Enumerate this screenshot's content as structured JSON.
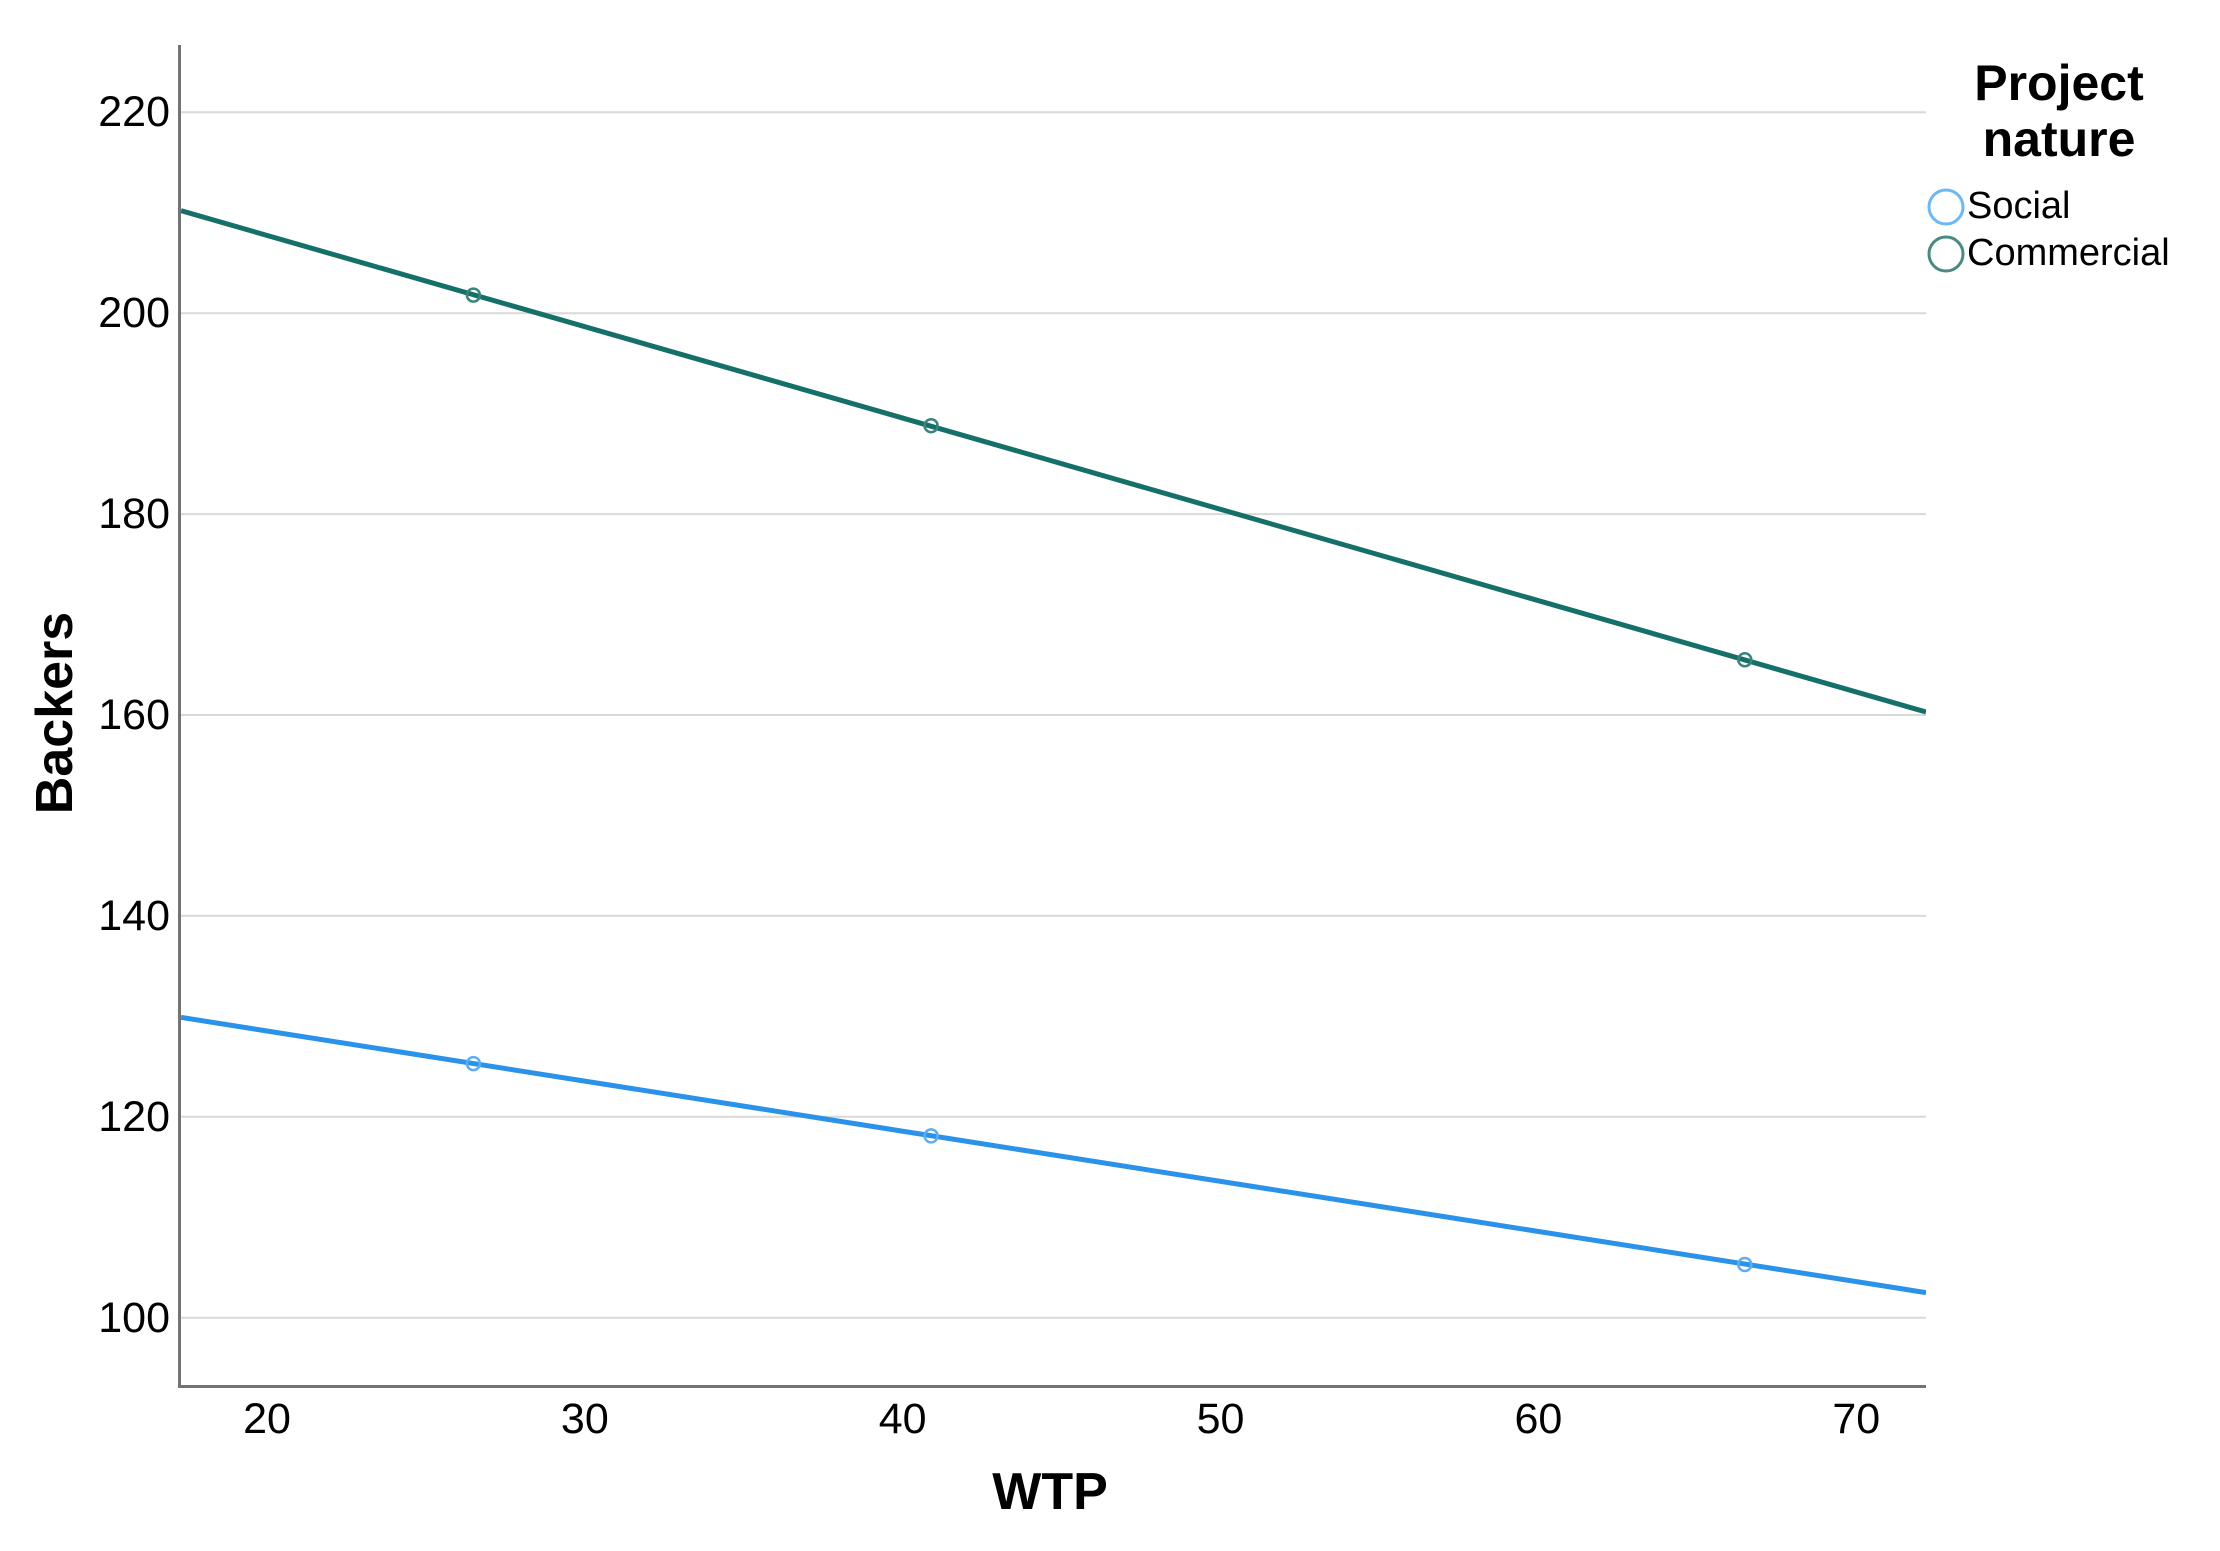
{
  "chart_data": {
    "type": "line",
    "title": "",
    "xlabel": "WTP",
    "ylabel": "Backers",
    "xlim": [
      17.2,
      72.1
    ],
    "ylim": [
      93.3,
      226.7
    ],
    "xticks": [
      20,
      30,
      40,
      50,
      60,
      70
    ],
    "yticks": [
      100,
      120,
      140,
      160,
      180,
      200,
      220
    ],
    "grid": "horizontal-only",
    "legend": {
      "title": "Project nature",
      "position": "outside-top-right",
      "items": [
        "Social",
        "Commercial"
      ]
    },
    "series": [
      {
        "name": "Social",
        "color": "#2B92EA",
        "marker": "circle-open",
        "marker_color": "#5FADF0",
        "legend_marker_color": "#6CB8F4",
        "points": [
          [
            26.4,
            125.3
          ],
          [
            40.8,
            118.1
          ],
          [
            66.4,
            105.3
          ]
        ],
        "line": [
          [
            17.2,
            129.9
          ],
          [
            72.1,
            102.5
          ]
        ]
      },
      {
        "name": "Commercial",
        "color": "#15706A",
        "marker": "circle-open",
        "marker_color": "#3C837B",
        "legend_marker_color": "#4A8A80",
        "points": [
          [
            26.4,
            201.8
          ],
          [
            40.8,
            188.8
          ],
          [
            66.4,
            165.5
          ]
        ],
        "line": [
          [
            17.2,
            210.2
          ],
          [
            72.1,
            160.3
          ]
        ]
      }
    ],
    "style": {
      "grid_color": "#D9D9D9",
      "axis_color": "#737373",
      "background": "#FFFFFF",
      "line_width": 5
    }
  }
}
